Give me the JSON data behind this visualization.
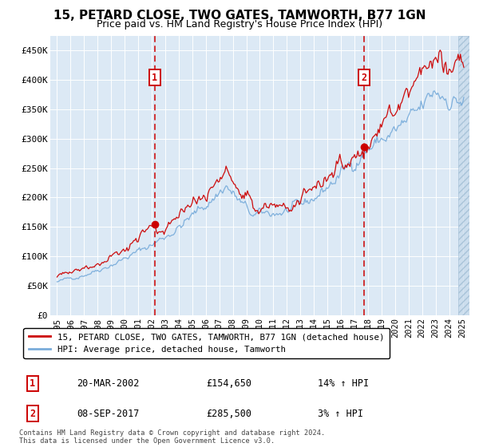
{
  "title": "15, PETARD CLOSE, TWO GATES, TAMWORTH, B77 1GN",
  "subtitle": "Price paid vs. HM Land Registry's House Price Index (HPI)",
  "legend_label_red": "15, PETARD CLOSE, TWO GATES, TAMWORTH, B77 1GN (detached house)",
  "legend_label_blue": "HPI: Average price, detached house, Tamworth",
  "annotation1_date": "20-MAR-2002",
  "annotation1_price": "£154,650",
  "annotation1_hpi": "14% ↑ HPI",
  "annotation1_year": 2002.22,
  "annotation1_value": 154650,
  "annotation2_date": "08-SEP-2017",
  "annotation2_price": "£285,500",
  "annotation2_hpi": "3% ↑ HPI",
  "annotation2_year": 2017.69,
  "annotation2_value": 285500,
  "footer": "Contains HM Land Registry data © Crown copyright and database right 2024.\nThis data is licensed under the Open Government Licence v3.0.",
  "ylim": [
    0,
    475000
  ],
  "xlim_start": 1994.5,
  "xlim_end": 2025.5,
  "background_color": "#dce9f5",
  "red_color": "#cc0000",
  "blue_color": "#7aaddb",
  "grid_color": "#ffffff",
  "yticks": [
    0,
    50000,
    100000,
    150000,
    200000,
    250000,
    300000,
    350000,
    400000,
    450000
  ],
  "ytick_labels": [
    "£0",
    "£50K",
    "£100K",
    "£150K",
    "£200K",
    "£250K",
    "£300K",
    "£350K",
    "£400K",
    "£450K"
  ],
  "xticks": [
    1995,
    1996,
    1997,
    1998,
    1999,
    2000,
    2001,
    2002,
    2003,
    2004,
    2005,
    2006,
    2007,
    2008,
    2009,
    2010,
    2011,
    2012,
    2013,
    2014,
    2015,
    2016,
    2017,
    2018,
    2019,
    2020,
    2021,
    2022,
    2023,
    2024,
    2025
  ]
}
